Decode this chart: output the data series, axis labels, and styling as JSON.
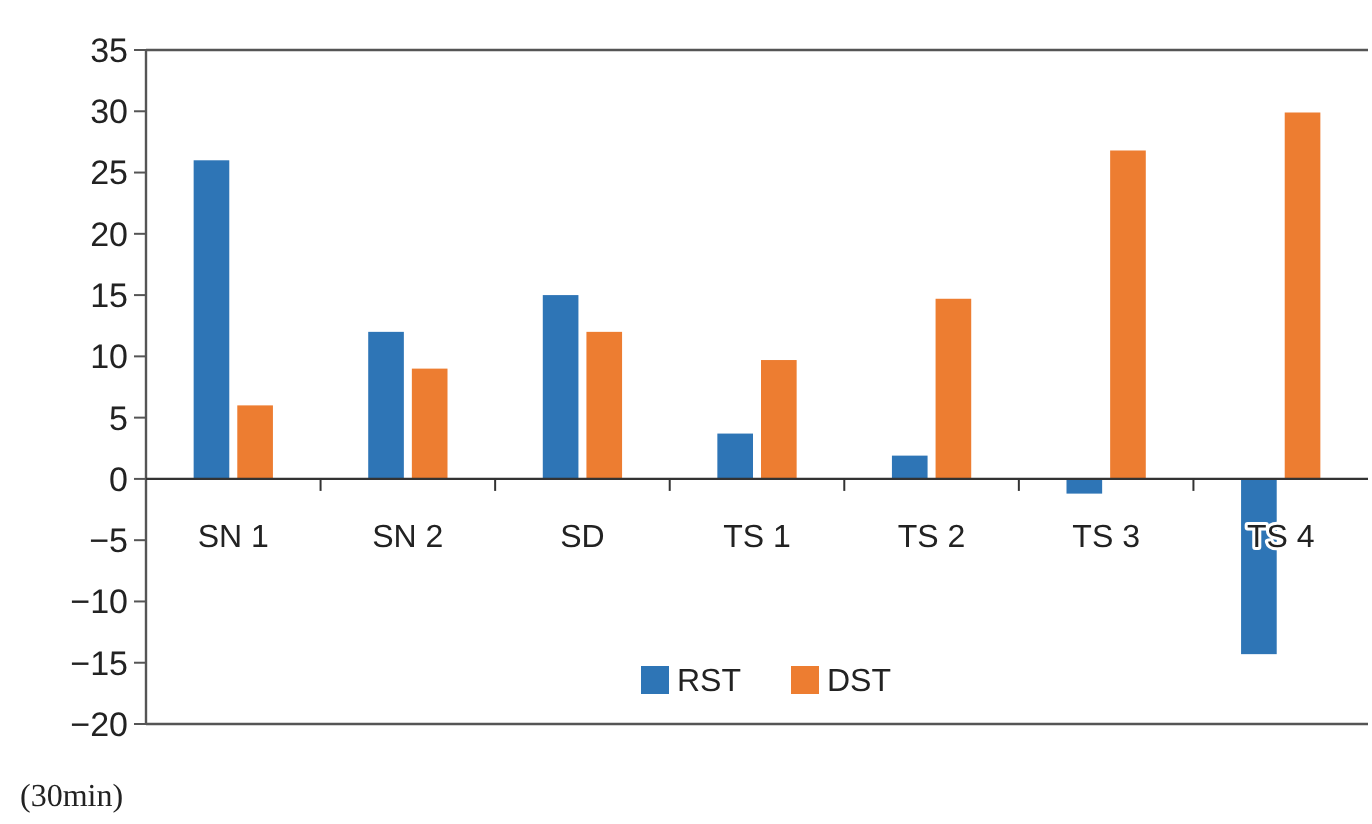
{
  "chart_data": {
    "type": "bar",
    "categories": [
      "SN 1",
      "SN 2",
      "SD",
      "TS 1",
      "TS 2",
      "TS 3",
      "TS 4"
    ],
    "series": [
      {
        "name": "RST",
        "color": "#2e75b6",
        "values": [
          26,
          12,
          15,
          3.7,
          1.9,
          -1.2,
          -14.3
        ]
      },
      {
        "name": "DST",
        "color": "#ed7d31",
        "values": [
          6,
          9,
          12,
          9.7,
          14.7,
          26.8,
          29.9
        ]
      }
    ],
    "ylim": [
      -20,
      35
    ],
    "yticks": [
      {
        "value": -20,
        "label": "−20"
      },
      {
        "value": -15,
        "label": "−15"
      },
      {
        "value": -10,
        "label": "−10"
      },
      {
        "value": -5,
        "label": "−5"
      },
      0,
      5,
      10,
      15,
      20,
      25,
      30,
      35
    ],
    "legend": "bottom",
    "annotations": [
      "(30min)"
    ]
  }
}
